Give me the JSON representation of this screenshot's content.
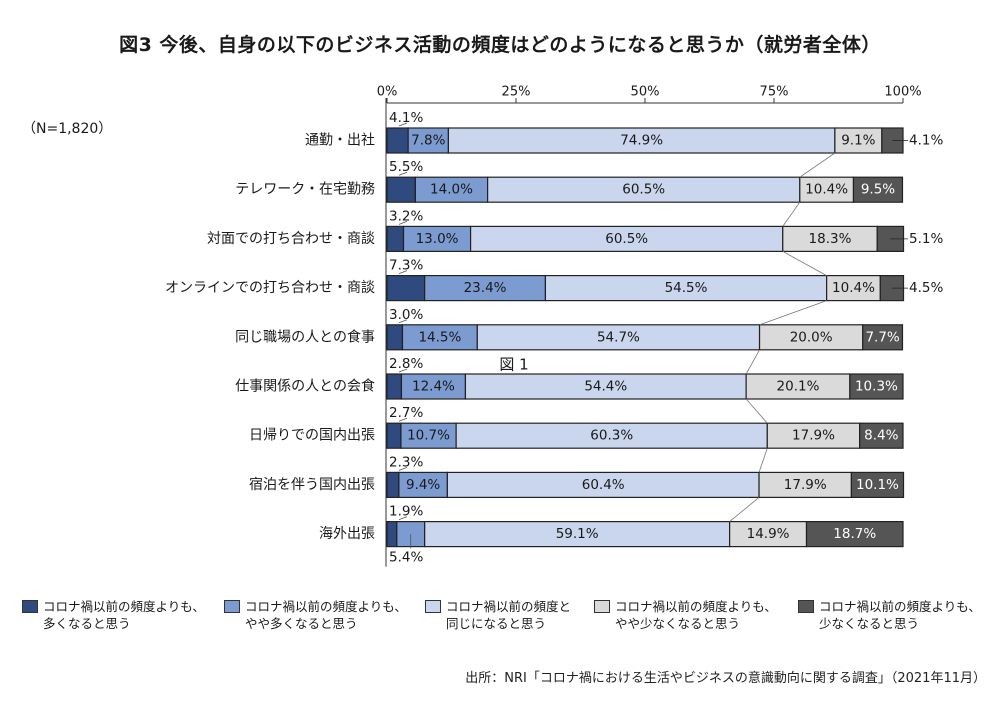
{
  "chart_data": {
    "type": "bar",
    "orientation": "horizontal",
    "stacked": true,
    "normalized_percent": true,
    "title": "図3 今後、自身の以下のビジネス活動の頻度はどのようになると思うか（就労者全体）",
    "sample_note": "（N=1,820）",
    "xlabel": "",
    "ylabel": "",
    "xlim": [
      0,
      100
    ],
    "x_ticks": [
      "0%",
      "25%",
      "50%",
      "75%",
      "100%"
    ],
    "x_tick_values": [
      0,
      25,
      50,
      75,
      100
    ],
    "grid": false,
    "legend_position": "bottom",
    "categories": [
      "通勤・出社",
      "テレワーク・在宅勤務",
      "対面での打ち合わせ・商談",
      "オンラインでの打ち合わせ・商談",
      "同じ職場の人との食事",
      "仕事関係の人との会食",
      "日帰りでの国内出張",
      "宿泊を伴う国内出張",
      "海外出張"
    ],
    "series": [
      {
        "name": "コロナ禍以前の頻度よりも、\n多くなると思う",
        "color": "#2e4a7e",
        "values": [
          4.1,
          5.5,
          3.2,
          7.3,
          3.0,
          2.8,
          2.7,
          2.3,
          1.9
        ]
      },
      {
        "name": "コロナ禍以前の頻度よりも、\nやや多くなると思う",
        "color": "#7c9bd1",
        "values": [
          7.8,
          14.0,
          13.0,
          23.4,
          14.5,
          12.4,
          10.7,
          9.4,
          5.4
        ]
      },
      {
        "name": "コロナ禍以前の頻度と\n同じになると思う",
        "color": "#c9d6ee",
        "values": [
          74.9,
          60.5,
          60.5,
          54.5,
          54.7,
          54.4,
          60.3,
          60.4,
          59.1
        ]
      },
      {
        "name": "コロナ禍以前の頻度よりも、\nやや少なくなると思う",
        "color": "#dadada",
        "values": [
          9.1,
          10.4,
          18.3,
          10.4,
          20.0,
          20.1,
          17.9,
          17.9,
          14.9
        ]
      },
      {
        "name": "コロナ禍以前の頻度よりも、\n少なくなると思う",
        "color": "#555555",
        "values": [
          4.1,
          9.5,
          5.1,
          4.5,
          7.7,
          10.3,
          8.4,
          10.1,
          18.7
        ]
      }
    ],
    "value_label_suffix": "%",
    "annotations": [
      "図 1"
    ]
  },
  "footer": {
    "source": "出所：NRI「コロナ禍における生活やビジネスの意識動向に関する調査」（2021年11月）"
  }
}
